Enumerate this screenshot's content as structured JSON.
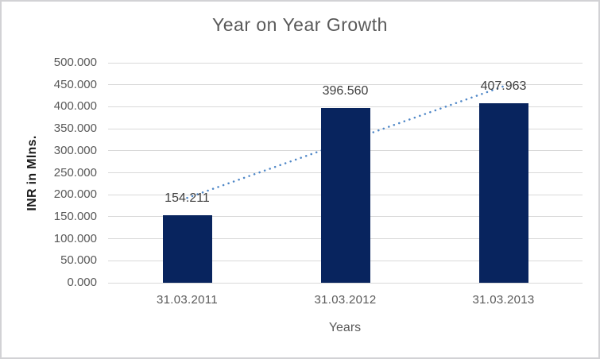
{
  "chart_data": {
    "type": "bar",
    "title": "Year on Year Growth",
    "xlabel": "Years",
    "ylabel": "INR in Mlns.",
    "categories": [
      "31.03.2011",
      "31.03.2012",
      "31.03.2013"
    ],
    "values": [
      154.211,
      396.56,
      407.963
    ],
    "data_labels": [
      "154.211",
      "396.560",
      "407.963"
    ],
    "ylim": [
      0,
      500
    ],
    "ytick_step": 50,
    "ytick_labels": [
      "0.000",
      "50.000",
      "100.000",
      "150.000",
      "200.000",
      "250.000",
      "300.000",
      "350.000",
      "400.000",
      "450.000",
      "500.000"
    ],
    "grid": true,
    "legend": "none",
    "trendline": {
      "type": "linear",
      "style": "dotted"
    },
    "colors": {
      "bar": "#08245E",
      "trendline": "#4F87C7",
      "gridline": "#D9D9D9",
      "title": "#595959",
      "tick_label": "#595959",
      "data_label": "#3F3F3F",
      "y_axis_title": "#1A1A1A",
      "x_axis_title": "#595959",
      "border": "#D2D2D5",
      "background": "#FFFFFF"
    }
  }
}
